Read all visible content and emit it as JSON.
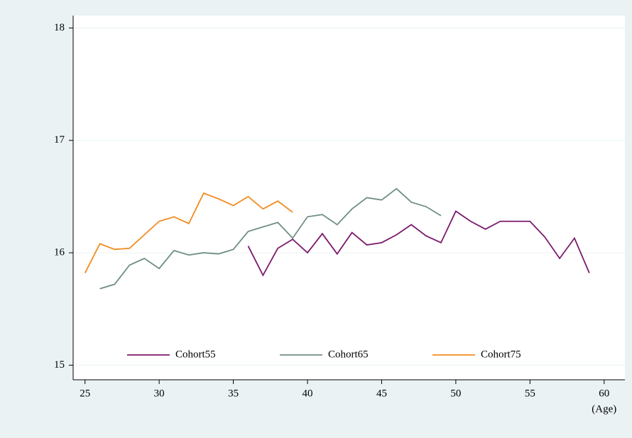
{
  "chart_data": {
    "type": "line",
    "x": [
      25,
      26,
      27,
      28,
      29,
      30,
      31,
      32,
      33,
      34,
      35,
      36,
      37,
      38,
      39,
      40,
      41,
      42,
      43,
      44,
      45,
      46,
      47,
      48,
      49,
      50,
      51,
      52,
      53,
      54,
      55,
      56,
      57,
      58,
      59
    ],
    "x_label": "(Age)",
    "series": [
      {
        "name": "Cohort55",
        "color": "#7b1a6b",
        "values": [
          null,
          null,
          null,
          null,
          null,
          null,
          null,
          null,
          null,
          null,
          null,
          16.06,
          15.8,
          16.04,
          16.12,
          16.0,
          16.17,
          15.99,
          16.18,
          16.07,
          16.09,
          16.16,
          16.25,
          16.15,
          16.09,
          16.37,
          16.28,
          16.21,
          16.28,
          16.28,
          16.28,
          16.14,
          15.95,
          16.13,
          15.82
        ]
      },
      {
        "name": "Cohort65",
        "color": "#708f84",
        "values": [
          null,
          15.68,
          15.72,
          15.89,
          15.95,
          15.86,
          16.02,
          15.98,
          16.0,
          15.99,
          16.03,
          16.19,
          16.23,
          16.27,
          16.13,
          16.32,
          16.34,
          16.25,
          16.39,
          16.49,
          16.47,
          16.57,
          16.45,
          16.41,
          16.33,
          null,
          null,
          null,
          null,
          null,
          null,
          null,
          null,
          null,
          null
        ]
      },
      {
        "name": "Cohort75",
        "color": "#f28b1e",
        "values": [
          15.82,
          16.08,
          16.03,
          16.04,
          16.16,
          16.28,
          16.32,
          16.26,
          16.53,
          16.48,
          16.42,
          16.5,
          16.39,
          16.46,
          16.36,
          null,
          null,
          null,
          null,
          null,
          null,
          null,
          null,
          null,
          null,
          null,
          null,
          null,
          null,
          null,
          null,
          null,
          null,
          null,
          null
        ]
      }
    ],
    "xlim": [
      24.2,
      61.4
    ],
    "xticks": [
      25,
      30,
      35,
      40,
      45,
      50,
      55,
      60
    ],
    "ylim": [
      14.87,
      18.11
    ],
    "yticks": [
      15,
      16,
      17,
      18
    ],
    "grid": true,
    "legend": "bottom"
  }
}
